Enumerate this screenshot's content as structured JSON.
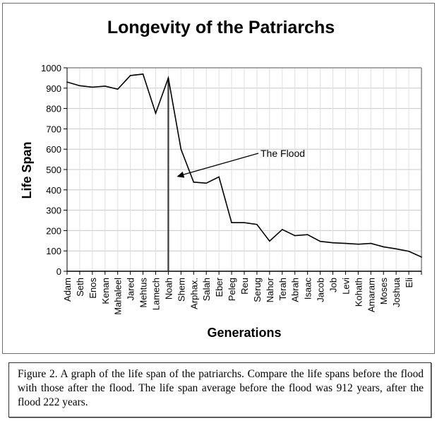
{
  "chart_data": {
    "type": "line",
    "title": "Longevity of the Patriarchs",
    "xlabel": "Generations",
    "ylabel": "Life Span",
    "ylim": [
      0,
      1000
    ],
    "yticks": [
      0,
      100,
      200,
      300,
      400,
      500,
      600,
      700,
      800,
      900,
      1000
    ],
    "grid": true,
    "legend": "none",
    "categories": [
      "Adam",
      "Seth",
      "Enos",
      "Kenan",
      "Mahaleel",
      "Jared",
      "Mehtus",
      "Lamech",
      "Noah",
      "Shem",
      "Arphax.",
      "Salah",
      "Eber",
      "Peleg",
      "Reu",
      "Serug",
      "Nahor",
      "Terah",
      "Abrah",
      "Isaac",
      "Jacob",
      "Job",
      "Levi",
      "Kohath",
      "Amaram",
      "Moses",
      "Joshua",
      "Eli",
      ""
    ],
    "series": [
      {
        "name": "Life Span",
        "color": "#000000",
        "values": [
          930,
          912,
          905,
          910,
          895,
          962,
          969,
          777,
          950,
          600,
          438,
          433,
          464,
          239,
          239,
          230,
          148,
          205,
          175,
          180,
          147,
          140,
          137,
          133,
          137,
          120,
          110,
          98,
          70
        ]
      }
    ],
    "annotations": [
      {
        "type": "vertical-line",
        "at_category": "Noah",
        "from": 0,
        "to": 950
      },
      {
        "type": "arrow",
        "text": "The Flood",
        "points_to_category": "Noah",
        "points_to_value": 465
      }
    ]
  },
  "caption": {
    "text": "Figure 2.  A graph of the life span of the patriarchs.  Compare the life spans before the flood with those after the flood.  The life span average before the flood was 912 years, after the flood 222 years."
  }
}
